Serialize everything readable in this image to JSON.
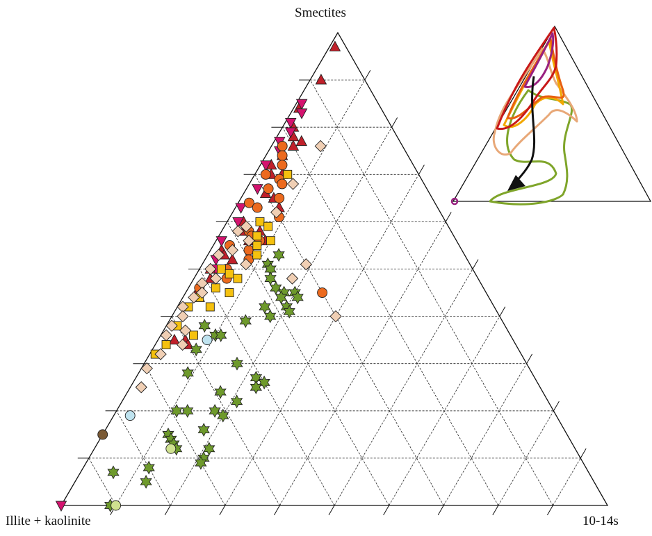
{
  "chart_data": {
    "type": "scatter",
    "subtype": "ternary",
    "axes": {
      "top": "Smectites",
      "left": "Illite + kaolinite",
      "right": "10-14s"
    },
    "grid": "dashed, 10% steps",
    "colors": {
      "red_triangle": "#c0202a",
      "magenta_triangle": "#d4136f",
      "orange_circle": "#ec6a1e",
      "yellow_square": "#f5c10f",
      "beige_diamond": "#f0cfb4",
      "green_star": "#6e9a2c",
      "lightblue_circle": "#bfe3ef",
      "lightgreen_circle": "#cfe190",
      "brown_circle": "#7a5a35"
    },
    "series": [
      {
        "marker": "triangle-up",
        "color": "#c0202a",
        "points": [
          [
            0.97,
            0.01
          ],
          [
            0.9,
            0.02
          ],
          [
            0.84,
            0.01
          ],
          [
            0.8,
            0.02
          ],
          [
            0.78,
            0.03
          ],
          [
            0.76,
            0.04
          ],
          [
            0.77,
            0.05
          ],
          [
            0.74,
            0.03
          ],
          [
            0.72,
            0.02
          ],
          [
            0.7,
            0.03
          ],
          [
            0.7,
            0.05
          ],
          [
            0.66,
            0.04
          ],
          [
            0.65,
            0.06
          ],
          [
            0.63,
            0.08
          ],
          [
            0.6,
            0.03
          ],
          [
            0.58,
            0.04
          ],
          [
            0.58,
            0.07
          ],
          [
            0.56,
            0.06
          ],
          [
            0.56,
            0.09
          ],
          [
            0.54,
            0.02
          ],
          [
            0.53,
            0.03
          ],
          [
            0.52,
            0.05
          ],
          [
            0.5,
            0.02
          ],
          [
            0.48,
            0.03
          ],
          [
            0.45,
            0.02
          ],
          [
            0.44,
            0.03
          ],
          [
            0.35,
            0.03
          ],
          [
            0.35,
            0.05
          ],
          [
            0.34,
            0.06
          ]
        ]
      },
      {
        "marker": "triangle-down",
        "color": "#d4136f",
        "points": [
          [
            0.85,
            0.01
          ],
          [
            0.83,
            0.02
          ],
          [
            0.81,
            0.01
          ],
          [
            0.79,
            0.02
          ],
          [
            0.77,
            0.01
          ],
          [
            0.75,
            0.02
          ],
          [
            0.72,
            0.01
          ],
          [
            0.67,
            0.02
          ],
          [
            0.63,
            0.01
          ],
          [
            0.6,
            0.02
          ],
          [
            0.56,
            0.01
          ],
          [
            0.52,
            0.02
          ],
          [
            0.5,
            0.03
          ],
          [
            0.0,
            0.0
          ]
        ]
      },
      {
        "marker": "circle",
        "color": "#ec6a1e",
        "points": [
          [
            0.76,
            0.02
          ],
          [
            0.74,
            0.03
          ],
          [
            0.72,
            0.04
          ],
          [
            0.7,
            0.02
          ],
          [
            0.69,
            0.05
          ],
          [
            0.68,
            0.06
          ],
          [
            0.67,
            0.04
          ],
          [
            0.65,
            0.07
          ],
          [
            0.64,
            0.02
          ],
          [
            0.63,
            0.04
          ],
          [
            0.61,
            0.09
          ],
          [
            0.58,
            0.05
          ],
          [
            0.57,
            0.06
          ],
          [
            0.56,
            0.08
          ],
          [
            0.55,
            0.03
          ],
          [
            0.54,
            0.07
          ],
          [
            0.52,
            0.08
          ],
          [
            0.5,
            0.05
          ],
          [
            0.48,
            0.06
          ],
          [
            0.46,
            0.02
          ],
          [
            0.45,
            0.25
          ]
        ]
      },
      {
        "marker": "square",
        "color": "#f5c10f",
        "points": [
          [
            0.7,
            0.06
          ],
          [
            0.6,
            0.06
          ],
          [
            0.59,
            0.08
          ],
          [
            0.57,
            0.07
          ],
          [
            0.56,
            0.1
          ],
          [
            0.55,
            0.08
          ],
          [
            0.53,
            0.09
          ],
          [
            0.5,
            0.04
          ],
          [
            0.49,
            0.06
          ],
          [
            0.48,
            0.08
          ],
          [
            0.46,
            0.05
          ],
          [
            0.45,
            0.08
          ],
          [
            0.44,
            0.03
          ],
          [
            0.42,
            0.06
          ],
          [
            0.42,
            0.02
          ],
          [
            0.38,
            0.02
          ],
          [
            0.36,
            0.06
          ],
          [
            0.34,
            0.02
          ],
          [
            0.32,
            0.01
          ]
        ]
      },
      {
        "marker": "diamond",
        "color": "#f0cfb4",
        "points": [
          [
            0.76,
            0.09
          ],
          [
            0.68,
            0.08
          ],
          [
            0.62,
            0.08
          ],
          [
            0.59,
            0.04
          ],
          [
            0.58,
            0.03
          ],
          [
            0.56,
            0.06
          ],
          [
            0.54,
            0.04
          ],
          [
            0.53,
            0.02
          ],
          [
            0.51,
            0.08
          ],
          [
            0.5,
            0.02
          ],
          [
            0.48,
            0.04
          ],
          [
            0.47,
            0.02
          ],
          [
            0.45,
            0.03
          ],
          [
            0.44,
            0.02
          ],
          [
            0.42,
            0.01
          ],
          [
            0.4,
            0.02
          ],
          [
            0.38,
            0.01
          ],
          [
            0.37,
            0.04
          ],
          [
            0.36,
            0.01
          ],
          [
            0.34,
            0.05
          ],
          [
            0.32,
            0.02
          ],
          [
            0.29,
            0.01
          ],
          [
            0.25,
            0.02
          ],
          [
            0.51,
            0.19
          ],
          [
            0.48,
            0.18
          ],
          [
            0.4,
            0.3
          ]
        ]
      },
      {
        "marker": "star",
        "color": "#6e9a2c",
        "points": [
          [
            0.53,
            0.13
          ],
          [
            0.51,
            0.12
          ],
          [
            0.5,
            0.13
          ],
          [
            0.48,
            0.14
          ],
          [
            0.46,
            0.16
          ],
          [
            0.45,
            0.18
          ],
          [
            0.45,
            0.2
          ],
          [
            0.44,
            0.18
          ],
          [
            0.44,
            0.21
          ],
          [
            0.42,
            0.2
          ],
          [
            0.42,
            0.16
          ],
          [
            0.41,
            0.21
          ],
          [
            0.4,
            0.18
          ],
          [
            0.39,
            0.14
          ],
          [
            0.38,
            0.07
          ],
          [
            0.36,
            0.1
          ],
          [
            0.36,
            0.11
          ],
          [
            0.33,
            0.08
          ],
          [
            0.3,
            0.17
          ],
          [
            0.28,
            0.09
          ],
          [
            0.27,
            0.22
          ],
          [
            0.26,
            0.24
          ],
          [
            0.25,
            0.23
          ],
          [
            0.24,
            0.17
          ],
          [
            0.22,
            0.21
          ],
          [
            0.2,
            0.11
          ],
          [
            0.2,
            0.13
          ],
          [
            0.2,
            0.18
          ],
          [
            0.19,
            0.2
          ],
          [
            0.16,
            0.18
          ],
          [
            0.15,
            0.12
          ],
          [
            0.14,
            0.13
          ],
          [
            0.13,
            0.14
          ],
          [
            0.12,
            0.15
          ],
          [
            0.12,
            0.21
          ],
          [
            0.1,
            0.21
          ],
          [
            0.09,
            0.21
          ],
          [
            0.08,
            0.12
          ],
          [
            0.07,
            0.06
          ],
          [
            0.05,
            0.13
          ],
          [
            0.0,
            0.09
          ]
        ]
      },
      {
        "marker": "circle",
        "color": "#bfe3ef",
        "points": [
          [
            0.35,
            0.09
          ],
          [
            0.19,
            0.03
          ]
        ]
      },
      {
        "marker": "circle",
        "color": "#cfe190",
        "points": [
          [
            0.12,
            0.14
          ],
          [
            0.0,
            0.1
          ]
        ]
      },
      {
        "marker": "circle",
        "color": "#7a5a35",
        "points": [
          [
            0.15,
            0.0
          ]
        ]
      }
    ],
    "inset": {
      "paths": [
        {
          "color": "#7fa52a"
        },
        {
          "color": "#e8a878"
        },
        {
          "color": "#f2a800"
        },
        {
          "color": "#e86010"
        },
        {
          "color": "#c81818"
        },
        {
          "color": "#982080"
        },
        {
          "color": "#111111"
        }
      ]
    }
  }
}
